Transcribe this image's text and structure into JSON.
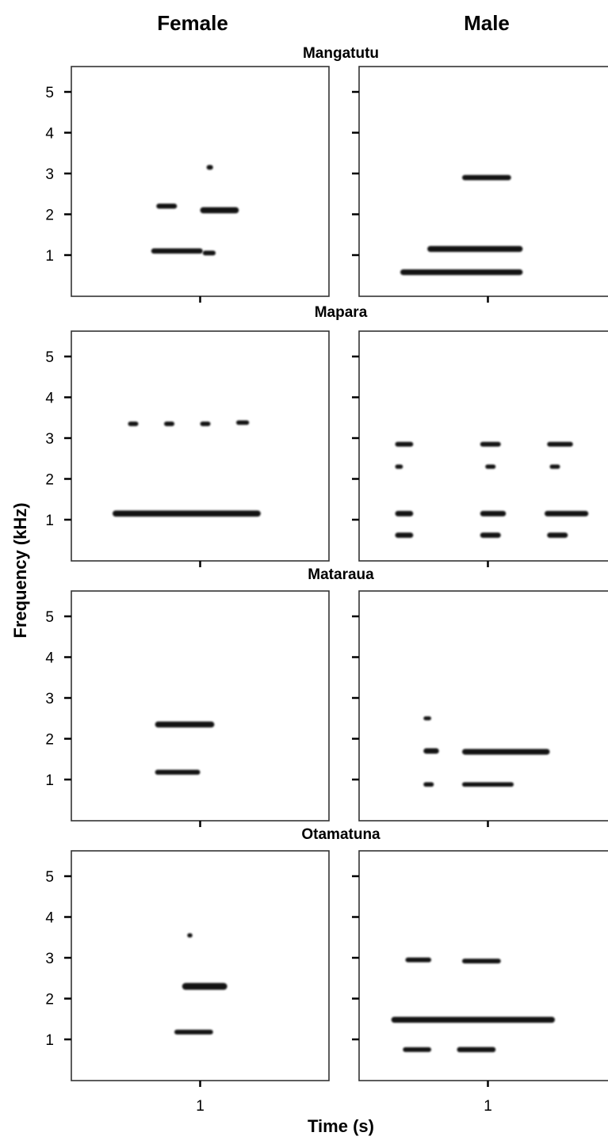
{
  "columns": [
    "Female",
    "Male"
  ],
  "ylabel": "Frequency (kHz)",
  "xlabel": "Time (s)",
  "colors": {
    "ink": "#000000",
    "frame": "#333333",
    "background": "#ffffff"
  },
  "chart_data": {
    "type": "spectrogram",
    "rows": [
      "Mangatutu",
      "Mapara",
      "Mataraua",
      "Otamatuna"
    ],
    "columns": [
      "Female",
      "Male"
    ],
    "ylabel": "Frequency (kHz)",
    "xlabel": "Time (s)",
    "yticks": [
      "1",
      "2",
      "3",
      "4",
      "5"
    ],
    "ytick_values": [
      1,
      2,
      3,
      4,
      5
    ],
    "xticks": [
      "1"
    ],
    "xtick_values": [
      1
    ],
    "ylim": [
      0,
      5.5
    ],
    "xlim": [
      0,
      2
    ],
    "panels": [
      {
        "row": "Mangatutu",
        "column": "Female",
        "bands": [
          {
            "t0": 0.62,
            "t1": 1.02,
            "f": 1.1,
            "w": 1.2
          },
          {
            "t0": 1.02,
            "t1": 1.12,
            "f": 1.05,
            "w": 1.0
          },
          {
            "t0": 0.66,
            "t1": 0.82,
            "f": 2.2,
            "w": 1.1
          },
          {
            "t0": 1.0,
            "t1": 1.3,
            "f": 2.1,
            "w": 1.6
          },
          {
            "t0": 1.05,
            "t1": 1.1,
            "f": 3.15,
            "w": 1.0
          }
        ]
      },
      {
        "row": "Mangatutu",
        "column": "Male",
        "bands": [
          {
            "t0": 0.32,
            "t1": 1.27,
            "f": 0.58,
            "w": 1.4
          },
          {
            "t0": 0.53,
            "t1": 1.27,
            "f": 1.15,
            "w": 1.5
          },
          {
            "t0": 0.8,
            "t1": 1.18,
            "f": 2.9,
            "w": 1.2
          }
        ]
      },
      {
        "row": "Mapara",
        "column": "Female",
        "bands": [
          {
            "t0": 0.32,
            "t1": 1.47,
            "f": 1.15,
            "w": 1.6
          },
          {
            "t0": 0.44,
            "t1": 0.52,
            "f": 3.35,
            "w": 0.9
          },
          {
            "t0": 0.72,
            "t1": 0.8,
            "f": 3.35,
            "w": 0.9
          },
          {
            "t0": 1.0,
            "t1": 1.08,
            "f": 3.35,
            "w": 0.9
          },
          {
            "t0": 1.28,
            "t1": 1.38,
            "f": 3.38,
            "w": 0.9
          }
        ]
      },
      {
        "row": "Mapara",
        "column": "Male",
        "bands": [
          {
            "t0": 0.28,
            "t1": 0.42,
            "f": 0.62,
            "w": 1.2
          },
          {
            "t0": 0.28,
            "t1": 0.42,
            "f": 1.15,
            "w": 1.3
          },
          {
            "t0": 0.28,
            "t1": 0.42,
            "f": 2.85,
            "w": 1.0
          },
          {
            "t0": 0.28,
            "t1": 0.34,
            "f": 2.3,
            "w": 0.8
          },
          {
            "t0": 0.94,
            "t1": 1.1,
            "f": 0.62,
            "w": 1.2
          },
          {
            "t0": 0.94,
            "t1": 1.14,
            "f": 1.15,
            "w": 1.3
          },
          {
            "t0": 0.94,
            "t1": 1.1,
            "f": 2.85,
            "w": 1.0
          },
          {
            "t0": 0.98,
            "t1": 1.06,
            "f": 2.3,
            "w": 0.8
          },
          {
            "t0": 1.46,
            "t1": 1.62,
            "f": 0.62,
            "w": 1.2
          },
          {
            "t0": 1.44,
            "t1": 1.78,
            "f": 1.15,
            "w": 1.3
          },
          {
            "t0": 1.46,
            "t1": 1.66,
            "f": 2.85,
            "w": 1.0
          },
          {
            "t0": 1.48,
            "t1": 1.56,
            "f": 2.3,
            "w": 0.8
          }
        ]
      },
      {
        "row": "Mataraua",
        "column": "Female",
        "bands": [
          {
            "t0": 0.65,
            "t1": 1.11,
            "f": 2.35,
            "w": 1.5
          },
          {
            "t0": 0.65,
            "t1": 1.0,
            "f": 1.18,
            "w": 1.1
          }
        ]
      },
      {
        "row": "Mataraua",
        "column": "Male",
        "bands": [
          {
            "t0": 0.5,
            "t1": 0.62,
            "f": 1.7,
            "w": 1.3
          },
          {
            "t0": 0.8,
            "t1": 1.48,
            "f": 1.68,
            "w": 1.4
          },
          {
            "t0": 0.5,
            "t1": 0.58,
            "f": 0.88,
            "w": 0.9
          },
          {
            "t0": 0.8,
            "t1": 1.2,
            "f": 0.88,
            "w": 0.9
          },
          {
            "t0": 0.5,
            "t1": 0.56,
            "f": 2.5,
            "w": 0.7
          }
        ]
      },
      {
        "row": "Otamatuna",
        "column": "Female",
        "bands": [
          {
            "t0": 0.86,
            "t1": 1.21,
            "f": 2.3,
            "w": 1.9
          },
          {
            "t0": 0.8,
            "t1": 1.1,
            "f": 1.18,
            "w": 1.0
          },
          {
            "t0": 0.9,
            "t1": 0.94,
            "f": 3.55,
            "w": 0.8
          }
        ]
      },
      {
        "row": "Otamatuna",
        "column": "Male",
        "bands": [
          {
            "t0": 0.25,
            "t1": 1.52,
            "f": 1.48,
            "w": 1.5
          },
          {
            "t0": 0.36,
            "t1": 0.56,
            "f": 2.95,
            "w": 1.0
          },
          {
            "t0": 0.8,
            "t1": 1.1,
            "f": 2.92,
            "w": 1.0
          },
          {
            "t0": 0.34,
            "t1": 0.56,
            "f": 0.75,
            "w": 1.0
          },
          {
            "t0": 0.76,
            "t1": 1.06,
            "f": 0.75,
            "w": 1.2
          }
        ]
      }
    ]
  }
}
